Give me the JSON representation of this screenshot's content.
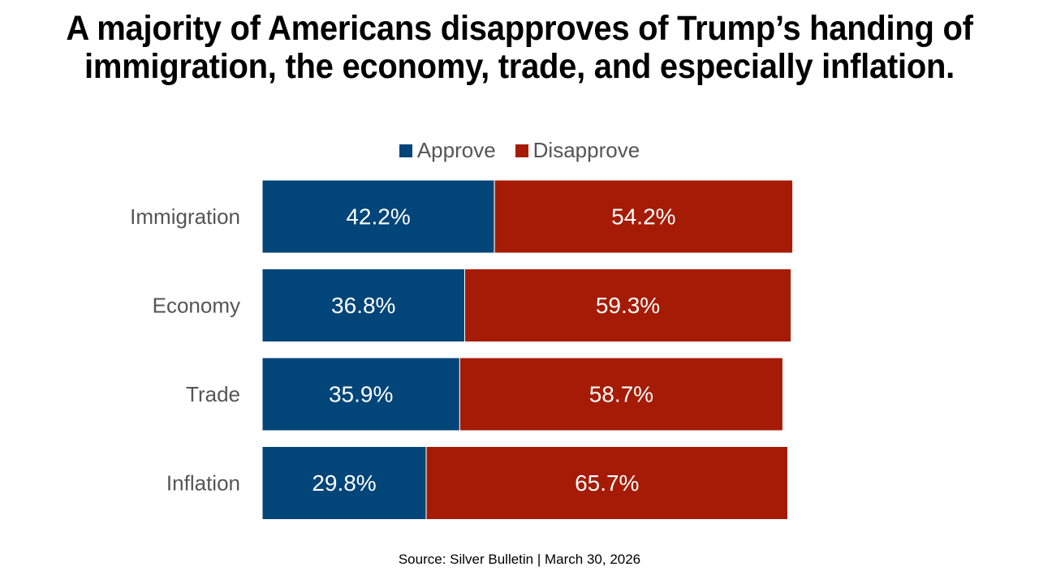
{
  "chart_data": {
    "type": "bar",
    "stacked": true,
    "orientation": "horizontal",
    "title": "A majority of Americans disapproves of Trump’s handing of immigration, the economy, trade, and especially inflation.",
    "categories": [
      "Immigration",
      "Economy",
      "Trade",
      "Inflation"
    ],
    "series": [
      {
        "name": "Approve",
        "color": "#024579",
        "values": [
          42.2,
          36.8,
          35.9,
          29.8
        ],
        "labels": [
          "42.2%",
          "36.8%",
          "35.9%",
          "29.8%"
        ]
      },
      {
        "name": "Disapprove",
        "color": "#A61B05",
        "values": [
          54.2,
          59.3,
          58.7,
          65.7
        ],
        "labels": [
          "54.2%",
          "59.3%",
          "58.7%",
          "65.7%"
        ]
      }
    ],
    "xlim": [
      0,
      100
    ],
    "legend_position": "top-center",
    "source": "Source: Silver Bulletin | March 30, 2026"
  }
}
